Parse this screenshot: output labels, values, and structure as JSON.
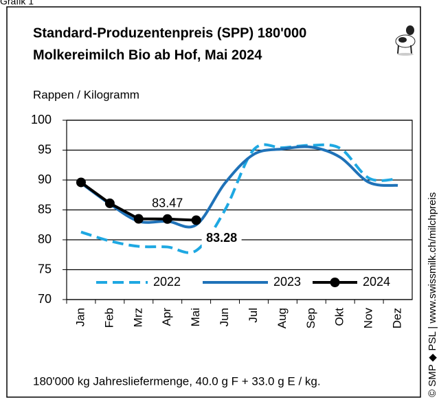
{
  "chart_data": {
    "type": "line",
    "label": "Grafik 1",
    "title": "Standard-Produzentenpreis (SPP) 180'000",
    "subtitle": "Molkereimilch Bio ab Hof, Mai 2024",
    "y_label": "Rappen / Kilogramm",
    "footnote": "180'000 kg Jahresliefermenge,  40.0 g F + 33.0 g E / kg.",
    "source": "© SMP ◆ PSL | www.swissmilk.ch/milchpreis",
    "categories": [
      "Jan",
      "Feb",
      "Mrz",
      "Apr",
      "Mai",
      "Jun",
      "Jul",
      "Aug",
      "Sep",
      "Okt",
      "Nov",
      "Dez"
    ],
    "series": [
      {
        "name": "2022",
        "color": "#1ea8e2",
        "dashed": true,
        "values": [
          81.3,
          79.8,
          78.9,
          78.8,
          78.2,
          85.0,
          95.1,
          95.4,
          95.8,
          95.3,
          90.3,
          90.2
        ]
      },
      {
        "name": "2023",
        "color": "#1f72b8",
        "values": [
          89.5,
          86.0,
          83.1,
          83.1,
          82.5,
          89.5,
          94.3,
          95.2,
          95.5,
          93.8,
          89.6,
          89.1
        ]
      },
      {
        "name": "2024",
        "color": "#000000",
        "markers": true,
        "values": [
          89.6,
          86.1,
          83.5,
          83.47,
          83.28,
          null,
          null,
          null,
          null,
          null,
          null,
          null
        ],
        "value_labels": [
          null,
          null,
          null,
          "83.47",
          "83.28",
          null,
          null,
          null,
          null,
          null,
          null,
          null
        ]
      }
    ],
    "ylim": [
      70,
      100
    ],
    "yticks": [
      70,
      75,
      80,
      85,
      90,
      95,
      100
    ],
    "grid": true
  }
}
